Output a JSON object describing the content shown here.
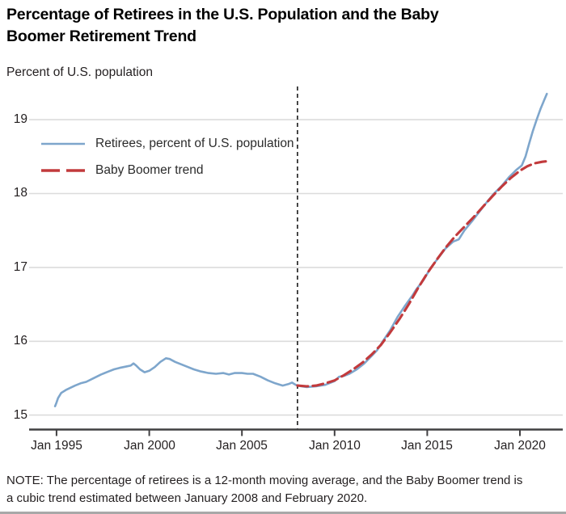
{
  "header": {
    "title": "Percentage of Retirees in the U.S. Population and the Baby Boomer Retirement Trend",
    "y_axis_caption": "Percent of U.S. population"
  },
  "legend": {
    "items": [
      {
        "label": "Retirees, percent of U.S. population",
        "color": "#7EA6CC",
        "style": "solid"
      },
      {
        "label": "Baby Boomer trend",
        "color": "#C23A3C",
        "style": "dashed"
      }
    ]
  },
  "note": "NOTE: The percentage of retirees is a 12-month moving average, and the Baby Boomer trend is a cubic trend estimated between January 2008 and February 2020.",
  "colors": {
    "retirees_line": "#7EA6CC",
    "trend_line": "#C23A3C",
    "gridline": "#DCDCDC",
    "axis": "#414042",
    "vline": "#1A1A1A",
    "text": "#231F20",
    "title": "#000000"
  },
  "chart_data": {
    "type": "line",
    "title": "Percentage of Retirees in the U.S. Population and the Baby Boomer Retirement Trend",
    "xlabel": "",
    "ylabel": "Percent of U.S. population",
    "xlim": [
      1993.52,
      2022.31
    ],
    "ylim": [
      14.81,
      19.45
    ],
    "grid": "horizontal",
    "legend_position": "top-left",
    "x_ticks": [
      {
        "label": "Jan 1995",
        "x": 1995
      },
      {
        "label": "Jan 2000",
        "x": 2000
      },
      {
        "label": "Jan 2005",
        "x": 2005
      },
      {
        "label": "Jan 2010",
        "x": 2010
      },
      {
        "label": "Jan 2015",
        "x": 2015
      },
      {
        "label": "Jan 2020",
        "x": 2020
      }
    ],
    "y_ticks": [
      {
        "label": "15",
        "value": 15
      },
      {
        "label": "16",
        "value": 16
      },
      {
        "label": "17",
        "value": 17
      },
      {
        "label": "18",
        "value": 18
      },
      {
        "label": "19",
        "value": 19
      }
    ],
    "annotations": [
      {
        "type": "vline",
        "x": 2008,
        "style": "dashed"
      }
    ],
    "series": [
      {
        "name": "Retirees, percent of U.S. population",
        "color": "#7EA6CC",
        "style": "solid",
        "points": [
          [
            1994.92,
            15.12
          ],
          [
            1995.0,
            15.17
          ],
          [
            1995.08,
            15.23
          ],
          [
            1995.25,
            15.3
          ],
          [
            1995.5,
            15.34
          ],
          [
            1995.75,
            15.37
          ],
          [
            1996.0,
            15.4
          ],
          [
            1996.3,
            15.43
          ],
          [
            1996.6,
            15.45
          ],
          [
            1997.0,
            15.5
          ],
          [
            1997.4,
            15.55
          ],
          [
            1997.8,
            15.59
          ],
          [
            1998.1,
            15.62
          ],
          [
            1998.4,
            15.64
          ],
          [
            1998.8,
            15.66
          ],
          [
            1999.0,
            15.67
          ],
          [
            1999.15,
            15.7
          ],
          [
            1999.3,
            15.67
          ],
          [
            1999.5,
            15.62
          ],
          [
            1999.75,
            15.58
          ],
          [
            2000.0,
            15.6
          ],
          [
            2000.3,
            15.65
          ],
          [
            2000.6,
            15.72
          ],
          [
            2000.9,
            15.77
          ],
          [
            2001.1,
            15.76
          ],
          [
            2001.4,
            15.72
          ],
          [
            2001.7,
            15.69
          ],
          [
            2002.0,
            15.66
          ],
          [
            2002.4,
            15.62
          ],
          [
            2002.8,
            15.59
          ],
          [
            2003.2,
            15.57
          ],
          [
            2003.6,
            15.56
          ],
          [
            2004.0,
            15.57
          ],
          [
            2004.3,
            15.55
          ],
          [
            2004.6,
            15.57
          ],
          [
            2005.0,
            15.57
          ],
          [
            2005.3,
            15.56
          ],
          [
            2005.6,
            15.56
          ],
          [
            2006.0,
            15.52
          ],
          [
            2006.4,
            15.47
          ],
          [
            2006.8,
            15.43
          ],
          [
            2007.2,
            15.4
          ],
          [
            2007.5,
            15.42
          ],
          [
            2007.7,
            15.44
          ],
          [
            2007.9,
            15.41
          ],
          [
            2008.2,
            15.39
          ],
          [
            2008.5,
            15.38
          ],
          [
            2009.0,
            15.39
          ],
          [
            2009.5,
            15.41
          ],
          [
            2010.0,
            15.46
          ],
          [
            2010.25,
            15.52
          ],
          [
            2010.5,
            15.53
          ],
          [
            2010.8,
            15.56
          ],
          [
            2011.2,
            15.62
          ],
          [
            2011.6,
            15.7
          ],
          [
            2012.0,
            15.8
          ],
          [
            2012.3,
            15.88
          ],
          [
            2012.6,
            16.0
          ],
          [
            2013.0,
            16.15
          ],
          [
            2013.4,
            16.33
          ],
          [
            2013.8,
            16.48
          ],
          [
            2014.2,
            16.62
          ],
          [
            2014.4,
            16.7
          ],
          [
            2014.8,
            16.83
          ],
          [
            2015.2,
            17.0
          ],
          [
            2015.6,
            17.13
          ],
          [
            2016.0,
            17.26
          ],
          [
            2016.4,
            17.35
          ],
          [
            2016.7,
            17.38
          ],
          [
            2017.0,
            17.5
          ],
          [
            2017.4,
            17.62
          ],
          [
            2017.8,
            17.75
          ],
          [
            2018.2,
            17.88
          ],
          [
            2018.6,
            18.0
          ],
          [
            2019.0,
            18.1
          ],
          [
            2019.4,
            18.22
          ],
          [
            2019.8,
            18.32
          ],
          [
            2020.1,
            18.38
          ],
          [
            2020.3,
            18.5
          ],
          [
            2020.5,
            18.68
          ],
          [
            2020.7,
            18.85
          ],
          [
            2020.9,
            19.0
          ],
          [
            2021.1,
            19.14
          ],
          [
            2021.3,
            19.26
          ],
          [
            2021.45,
            19.35
          ]
        ]
      },
      {
        "name": "Baby Boomer trend",
        "color": "#C23A3C",
        "style": "dashed",
        "points": [
          [
            2008.0,
            15.4
          ],
          [
            2008.5,
            15.39
          ],
          [
            2009.0,
            15.4
          ],
          [
            2009.5,
            15.43
          ],
          [
            2010.0,
            15.47
          ],
          [
            2010.5,
            15.54
          ],
          [
            2011.0,
            15.62
          ],
          [
            2011.5,
            15.71
          ],
          [
            2012.0,
            15.82
          ],
          [
            2012.5,
            15.95
          ],
          [
            2013.0,
            16.12
          ],
          [
            2013.5,
            16.3
          ],
          [
            2014.0,
            16.5
          ],
          [
            2014.5,
            16.72
          ],
          [
            2015.0,
            16.92
          ],
          [
            2015.5,
            17.1
          ],
          [
            2016.0,
            17.27
          ],
          [
            2016.5,
            17.42
          ],
          [
            2017.0,
            17.55
          ],
          [
            2017.5,
            17.68
          ],
          [
            2018.0,
            17.82
          ],
          [
            2018.5,
            17.96
          ],
          [
            2019.0,
            18.09
          ],
          [
            2019.5,
            18.21
          ],
          [
            2020.0,
            18.31
          ],
          [
            2020.4,
            18.37
          ],
          [
            2020.8,
            18.41
          ],
          [
            2021.2,
            18.43
          ],
          [
            2021.55,
            18.44
          ]
        ]
      }
    ]
  }
}
